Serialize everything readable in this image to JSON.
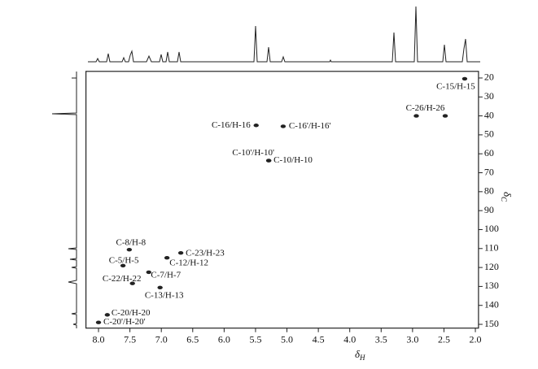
{
  "chart_data": {
    "type": "scatter",
    "x_label": {
      "main": "δ",
      "sub": "H"
    },
    "y_label": {
      "main": "δ",
      "sub": "C"
    },
    "xlim": [
      8.2,
      1.95
    ],
    "xticks": [
      {
        "value": 8,
        "label": "8.0"
      },
      {
        "value": 7.5,
        "label": "7.5"
      },
      {
        "value": 7,
        "label": "7.0"
      },
      {
        "value": 6.5,
        "label": "6.5"
      },
      {
        "value": 6,
        "label": "6.0"
      },
      {
        "value": 5.5,
        "label": "5.5"
      },
      {
        "value": 5,
        "label": "5.0"
      },
      {
        "value": 4.5,
        "label": "4.5"
      },
      {
        "value": 4,
        "label": "4.0"
      },
      {
        "value": 3.5,
        "label": "3.5"
      },
      {
        "value": 3,
        "label": "3.0"
      },
      {
        "value": 2.5,
        "label": "2.5"
      },
      {
        "value": 2,
        "label": "2.0"
      }
    ],
    "ylim": [
      16.5,
      152
    ],
    "yticks": [
      20,
      30,
      40,
      50,
      60,
      70,
      80,
      90,
      100,
      110,
      120,
      130,
      140,
      150
    ],
    "color": "#222222",
    "x": [
      2.17,
      2.94,
      2.48,
      5.49,
      5.06,
      5.29,
      5.29,
      7.51,
      6.69,
      6.91,
      7.61,
      7.2,
      7.46,
      7.02,
      7.86,
      8.0
    ],
    "y": [
      20.4,
      40,
      40,
      45,
      45.5,
      63.6,
      63.6,
      110.6,
      112.3,
      114.9,
      119,
      122.5,
      128.4,
      130.6,
      145,
      149
    ],
    "labels": [
      "C-15/H-15",
      "C-26/H-26",
      null,
      "C-16/H-16",
      "C-16'/H-16'",
      "C-10'/H-10'",
      "C-10/H-10",
      "C-8/H-8",
      "C-23/H-23",
      "C-12/H-12",
      "C-5/H-5",
      "C-7/H-7",
      "C-22/H-22",
      "C-13/H-13",
      "C-20/H-20",
      "C-20'/H-20'"
    ]
  }
}
